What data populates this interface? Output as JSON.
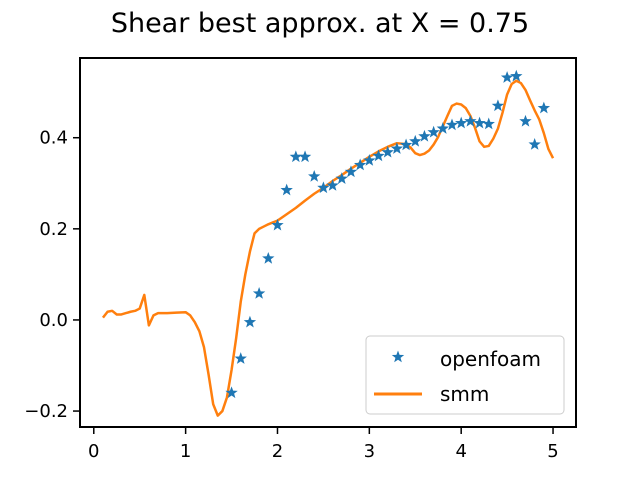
{
  "chart_data": {
    "type": "line",
    "title": "Shear best approx. at X = 0.75",
    "xlabel": "",
    "ylabel": "",
    "xlim": [
      -0.15,
      5.25
    ],
    "ylim": [
      -0.235,
      0.575
    ],
    "xticks": [
      0,
      1,
      2,
      3,
      4,
      5
    ],
    "yticks": [
      -0.2,
      0.0,
      0.2,
      0.4
    ],
    "xtick_labels": [
      "0",
      "1",
      "2",
      "3",
      "4",
      "5"
    ],
    "ytick_labels": [
      "−0.2",
      "0.0",
      "0.2",
      "0.4"
    ],
    "grid": false,
    "legend_position": "lower-right",
    "series": [
      {
        "name": "openfoam",
        "kind": "scatter",
        "marker": "star",
        "color": "#1f77b4",
        "x": [
          1.5,
          1.6,
          1.7,
          1.8,
          1.9,
          2.0,
          2.1,
          2.2,
          2.3,
          2.4,
          2.5,
          2.6,
          2.7,
          2.8,
          2.9,
          3.0,
          3.1,
          3.2,
          3.3,
          3.4,
          3.5,
          3.6,
          3.7,
          3.8,
          3.9,
          4.0,
          4.1,
          4.2,
          4.3,
          4.4,
          4.5,
          4.6,
          4.7,
          4.8,
          4.9
        ],
        "y": [
          -0.16,
          -0.085,
          -0.005,
          0.058,
          0.135,
          0.208,
          0.285,
          0.358,
          0.358,
          0.315,
          0.29,
          0.295,
          0.31,
          0.325,
          0.34,
          0.35,
          0.36,
          0.368,
          0.376,
          0.384,
          0.392,
          0.403,
          0.412,
          0.42,
          0.428,
          0.432,
          0.436,
          0.432,
          0.43,
          0.47,
          0.532,
          0.535,
          0.436,
          0.385,
          0.465
        ]
      },
      {
        "name": "smm",
        "kind": "line",
        "color": "#ff7f0e",
        "x": [
          0.1,
          0.15,
          0.2,
          0.25,
          0.3,
          0.35,
          0.4,
          0.45,
          0.5,
          0.55,
          0.6,
          0.65,
          0.7,
          0.8,
          0.9,
          1.0,
          1.05,
          1.1,
          1.15,
          1.2,
          1.25,
          1.3,
          1.35,
          1.4,
          1.45,
          1.5,
          1.55,
          1.6,
          1.65,
          1.7,
          1.75,
          1.8,
          1.85,
          1.9,
          1.95,
          2.0,
          2.1,
          2.2,
          2.3,
          2.4,
          2.5,
          2.6,
          2.7,
          2.8,
          2.9,
          3.0,
          3.1,
          3.2,
          3.3,
          3.4,
          3.45,
          3.5,
          3.55,
          3.6,
          3.65,
          3.7,
          3.75,
          3.8,
          3.85,
          3.9,
          3.95,
          4.0,
          4.05,
          4.1,
          4.15,
          4.2,
          4.25,
          4.3,
          4.35,
          4.4,
          4.45,
          4.5,
          4.55,
          4.6,
          4.65,
          4.7,
          4.75,
          4.8,
          4.85,
          4.9,
          4.95,
          5.0
        ],
        "y": [
          0.005,
          0.018,
          0.02,
          0.012,
          0.012,
          0.015,
          0.018,
          0.02,
          0.025,
          0.055,
          -0.012,
          0.01,
          0.015,
          0.015,
          0.016,
          0.017,
          0.01,
          -0.005,
          -0.025,
          -0.06,
          -0.12,
          -0.185,
          -0.21,
          -0.2,
          -0.17,
          -0.11,
          -0.04,
          0.04,
          0.1,
          0.15,
          0.19,
          0.2,
          0.205,
          0.21,
          0.214,
          0.218,
          0.232,
          0.246,
          0.262,
          0.277,
          0.29,
          0.305,
          0.318,
          0.332,
          0.345,
          0.358,
          0.37,
          0.38,
          0.388,
          0.386,
          0.378,
          0.366,
          0.362,
          0.365,
          0.372,
          0.385,
          0.402,
          0.425,
          0.448,
          0.47,
          0.475,
          0.473,
          0.465,
          0.448,
          0.422,
          0.392,
          0.38,
          0.382,
          0.398,
          0.42,
          0.455,
          0.495,
          0.518,
          0.525,
          0.52,
          0.505,
          0.482,
          0.46,
          0.44,
          0.41,
          0.375,
          0.355
        ]
      }
    ]
  }
}
